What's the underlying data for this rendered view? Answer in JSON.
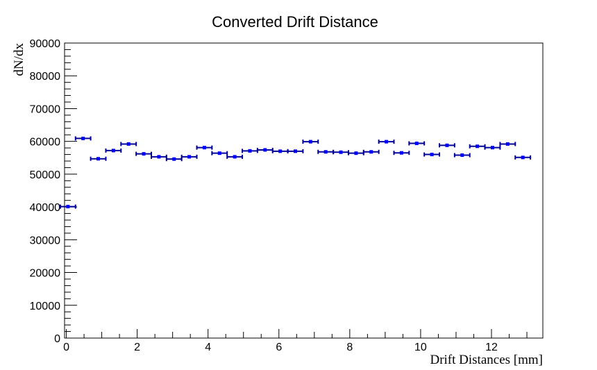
{
  "chart_data": {
    "type": "scatter",
    "title": "Converted Drift Distance",
    "xlabel": "Drift Distances [mm]",
    "ylabel": "dN/dx",
    "xlim": [
      -0.05,
      13.45
    ],
    "ylim": [
      0,
      90000
    ],
    "x_ticks": [
      0,
      2,
      4,
      6,
      8,
      10,
      12
    ],
    "y_ticks": [
      0,
      10000,
      20000,
      30000,
      40000,
      50000,
      60000,
      70000,
      80000,
      90000
    ],
    "bin_width": 0.428,
    "x": [
      0.045,
      0.473,
      0.901,
      1.329,
      1.757,
      2.185,
      2.613,
      3.041,
      3.469,
      3.897,
      4.325,
      4.753,
      5.181,
      5.609,
      6.037,
      6.465,
      6.893,
      7.321,
      7.749,
      8.177,
      8.605,
      9.033,
      9.461,
      9.889,
      10.317,
      10.745,
      11.173,
      11.601,
      12.029,
      12.457,
      12.885
    ],
    "y": [
      40100,
      60900,
      54700,
      57200,
      59200,
      56200,
      55300,
      54600,
      55300,
      58100,
      56400,
      55300,
      57100,
      57400,
      57000,
      57000,
      59900,
      56800,
      56700,
      56400,
      56800,
      59900,
      56500,
      59400,
      56000,
      58800,
      55800,
      58500,
      58100,
      59200,
      55100
    ],
    "marker_color": "#0000ff",
    "errorbar_color": "#000099"
  }
}
